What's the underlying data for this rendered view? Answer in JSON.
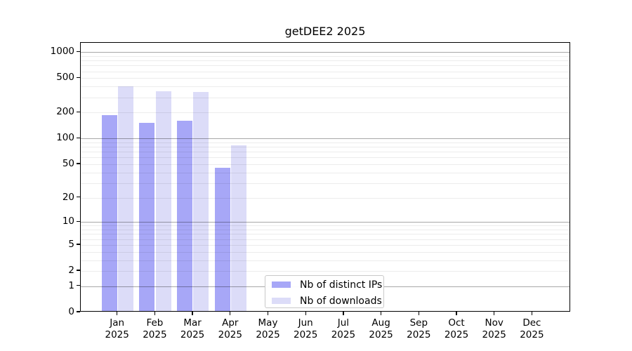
{
  "chart_data": {
    "type": "bar",
    "title": "getDEE2 2025",
    "x_categories": [
      "Jan",
      "Feb",
      "Mar",
      "Apr",
      "May",
      "Jun",
      "Jul",
      "Aug",
      "Sep",
      "Oct",
      "Nov",
      "Dec"
    ],
    "x_year": "2025",
    "y_scale": "log10(value+1)",
    "y_tick_labels": [
      1000,
      500,
      200,
      100,
      50,
      20,
      10,
      5,
      2,
      1,
      0
    ],
    "y_gridlines": {
      "major": [
        1,
        10,
        100,
        1000
      ],
      "minor": [
        2,
        3,
        4,
        5,
        6,
        7,
        8,
        9,
        20,
        30,
        40,
        50,
        60,
        70,
        80,
        90,
        200,
        300,
        400,
        500,
        600,
        700,
        800,
        900
      ]
    },
    "ylim": [
      0,
      1000
    ],
    "grid": true,
    "legend_position": "lower center",
    "series": [
      {
        "name": "Nb of distinct IPs",
        "color": "#a7a7f7",
        "values": [
          182,
          148,
          156,
          44,
          null,
          null,
          null,
          null,
          null,
          null,
          null,
          null
        ]
      },
      {
        "name": "Nb of downloads",
        "color": "#dcdcf8",
        "values": [
          385,
          340,
          335,
          80,
          null,
          null,
          null,
          null,
          null,
          null,
          null,
          null
        ]
      }
    ]
  },
  "colors": {
    "axis": "#000000",
    "major_grid": "#b0b0b0",
    "minor_grid": "#ececec",
    "background": "#ffffff",
    "legend_border": "#c9c9c9"
  }
}
